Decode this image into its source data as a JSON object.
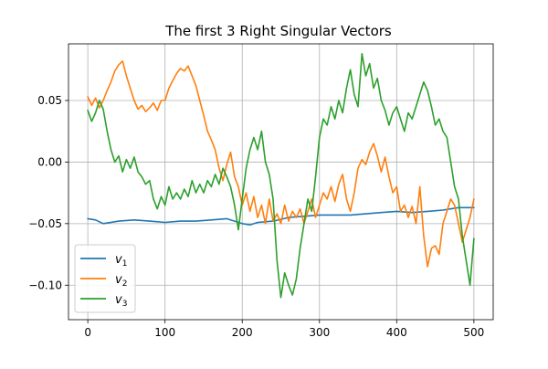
{
  "chart_data": {
    "type": "line",
    "title": "The first 3 Right Singular Vectors",
    "xlabel": "",
    "ylabel": "",
    "xlim": [
      -25,
      525
    ],
    "ylim": [
      -0.128,
      0.096
    ],
    "xticks": [
      0,
      100,
      200,
      300,
      400,
      500
    ],
    "xtick_labels": [
      "0",
      "100",
      "200",
      "300",
      "400",
      "500"
    ],
    "yticks": [
      0.05,
      0.0,
      -0.05,
      -0.1
    ],
    "ytick_labels": [
      "0.05",
      "0.00",
      "−0.05",
      "−0.10"
    ],
    "grid": true,
    "legend": {
      "position": "lower-left"
    },
    "series": [
      {
        "name": "v",
        "subscript": "1",
        "color": "#1f77b4",
        "x": [
          0,
          10,
          20,
          40,
          60,
          80,
          100,
          120,
          140,
          160,
          180,
          190,
          200,
          210,
          220,
          240,
          260,
          280,
          300,
          320,
          340,
          360,
          380,
          400,
          420,
          440,
          460,
          480,
          500
        ],
        "y": [
          -0.046,
          -0.047,
          -0.05,
          -0.048,
          -0.047,
          -0.048,
          -0.049,
          -0.048,
          -0.048,
          -0.047,
          -0.046,
          -0.048,
          -0.05,
          -0.051,
          -0.049,
          -0.048,
          -0.045,
          -0.044,
          -0.043,
          -0.043,
          -0.043,
          -0.042,
          -0.041,
          -0.04,
          -0.041,
          -0.04,
          -0.039,
          -0.037,
          -0.037
        ]
      },
      {
        "name": "v",
        "subscript": "2",
        "color": "#ff7f0e",
        "x": [
          0,
          5,
          10,
          15,
          20,
          25,
          30,
          35,
          40,
          45,
          50,
          55,
          60,
          65,
          70,
          75,
          80,
          85,
          90,
          95,
          100,
          105,
          110,
          115,
          120,
          125,
          130,
          135,
          140,
          145,
          150,
          155,
          160,
          165,
          170,
          175,
          180,
          185,
          190,
          195,
          200,
          205,
          210,
          215,
          220,
          225,
          230,
          235,
          240,
          245,
          250,
          255,
          260,
          265,
          270,
          275,
          280,
          285,
          290,
          295,
          300,
          305,
          310,
          315,
          320,
          325,
          330,
          335,
          340,
          345,
          350,
          355,
          360,
          365,
          370,
          375,
          380,
          385,
          390,
          395,
          400,
          405,
          410,
          415,
          420,
          425,
          430,
          435,
          440,
          445,
          450,
          455,
          460,
          465,
          470,
          475,
          480,
          485,
          490,
          495,
          500
        ],
        "y": [
          0.053,
          0.046,
          0.052,
          0.044,
          0.05,
          0.058,
          0.065,
          0.074,
          0.079,
          0.082,
          0.07,
          0.06,
          0.05,
          0.043,
          0.046,
          0.041,
          0.044,
          0.048,
          0.042,
          0.05,
          0.05,
          0.06,
          0.066,
          0.072,
          0.076,
          0.074,
          0.078,
          0.07,
          0.062,
          0.05,
          0.038,
          0.025,
          0.018,
          0.01,
          -0.005,
          -0.015,
          -0.002,
          0.008,
          -0.012,
          -0.02,
          -0.035,
          -0.025,
          -0.04,
          -0.028,
          -0.045,
          -0.035,
          -0.05,
          -0.03,
          -0.048,
          -0.042,
          -0.05,
          -0.035,
          -0.048,
          -0.04,
          -0.045,
          -0.038,
          -0.05,
          -0.04,
          -0.03,
          -0.045,
          -0.035,
          -0.025,
          -0.03,
          -0.02,
          -0.032,
          -0.018,
          -0.01,
          -0.03,
          -0.04,
          -0.025,
          -0.005,
          0.002,
          -0.002,
          0.008,
          0.015,
          0.005,
          -0.008,
          0.004,
          -0.012,
          -0.025,
          -0.02,
          -0.04,
          -0.035,
          -0.045,
          -0.036,
          -0.05,
          -0.02,
          -0.06,
          -0.085,
          -0.07,
          -0.068,
          -0.075,
          -0.05,
          -0.04,
          -0.03,
          -0.035,
          -0.05,
          -0.065,
          -0.055,
          -0.045,
          -0.03
        ]
      },
      {
        "name": "v",
        "subscript": "3",
        "color": "#2ca02c",
        "x": [
          0,
          5,
          10,
          15,
          20,
          25,
          30,
          35,
          40,
          45,
          50,
          55,
          60,
          65,
          70,
          75,
          80,
          85,
          90,
          95,
          100,
          105,
          110,
          115,
          120,
          125,
          130,
          135,
          140,
          145,
          150,
          155,
          160,
          165,
          170,
          175,
          180,
          185,
          190,
          195,
          200,
          205,
          210,
          215,
          220,
          225,
          230,
          235,
          240,
          245,
          250,
          255,
          260,
          265,
          270,
          275,
          280,
          285,
          290,
          295,
          300,
          305,
          310,
          315,
          320,
          325,
          330,
          335,
          340,
          345,
          350,
          355,
          360,
          365,
          370,
          375,
          380,
          385,
          390,
          395,
          400,
          405,
          410,
          415,
          420,
          425,
          430,
          435,
          440,
          445,
          450,
          455,
          460,
          465,
          470,
          475,
          480,
          485,
          490,
          495,
          500
        ],
        "y": [
          0.042,
          0.033,
          0.04,
          0.05,
          0.043,
          0.025,
          0.01,
          0.0,
          0.005,
          -0.008,
          0.002,
          -0.005,
          0.004,
          -0.008,
          -0.012,
          -0.018,
          -0.015,
          -0.03,
          -0.038,
          -0.028,
          -0.035,
          -0.02,
          -0.03,
          -0.025,
          -0.03,
          -0.022,
          -0.028,
          -0.015,
          -0.025,
          -0.018,
          -0.025,
          -0.015,
          -0.02,
          -0.01,
          -0.018,
          -0.005,
          -0.012,
          -0.02,
          -0.035,
          -0.055,
          -0.03,
          -0.005,
          0.01,
          0.02,
          0.01,
          0.025,
          0.0,
          -0.01,
          -0.03,
          -0.08,
          -0.11,
          -0.09,
          -0.1,
          -0.108,
          -0.095,
          -0.07,
          -0.05,
          -0.03,
          -0.04,
          -0.012,
          0.02,
          0.035,
          0.03,
          0.045,
          0.035,
          0.05,
          0.04,
          0.06,
          0.075,
          0.055,
          0.045,
          0.088,
          0.07,
          0.08,
          0.06,
          0.068,
          0.05,
          0.042,
          0.03,
          0.04,
          0.045,
          0.035,
          0.025,
          0.04,
          0.035,
          0.045,
          0.055,
          0.065,
          0.058,
          0.045,
          0.03,
          0.035,
          0.025,
          0.02,
          0.0,
          -0.02,
          -0.03,
          -0.06,
          -0.08,
          -0.1,
          -0.062
        ]
      }
    ]
  }
}
